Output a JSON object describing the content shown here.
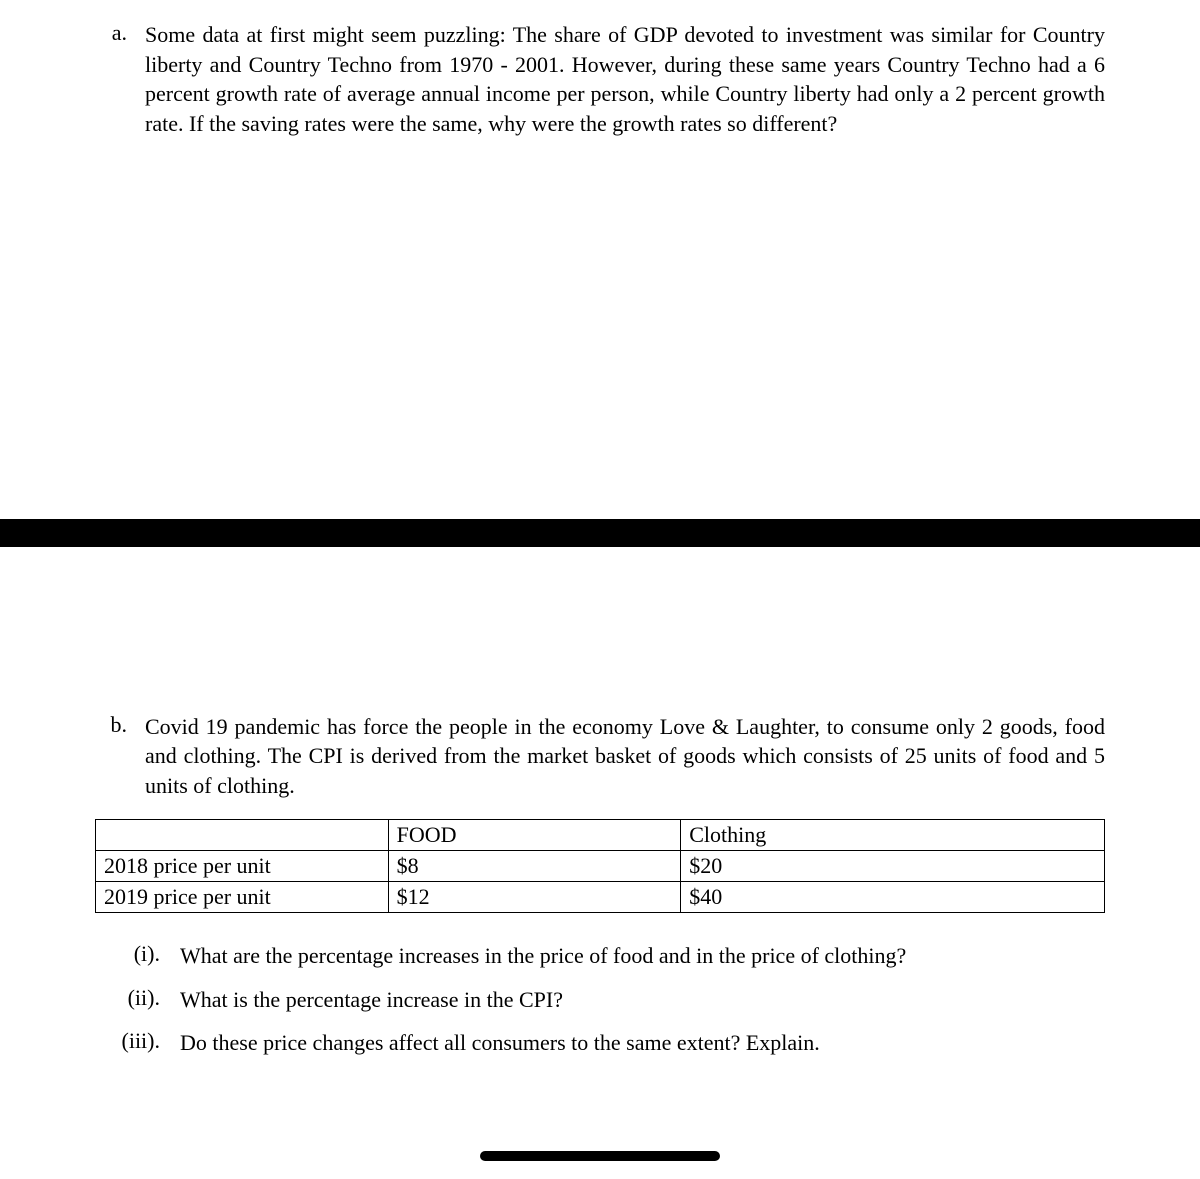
{
  "question_a": {
    "marker": "a.",
    "text": "Some data at first might seem puzzling: The share of GDP devoted to investment was similar for Country liberty and Country Techno from 1970 - 2001. However, during these same years Country Techno had a 6 percent growth rate of average annual income per person, while Country liberty had only a 2 percent growth rate. If the saving rates were the same, why were the growth rates so different?"
  },
  "question_b": {
    "marker": "b.",
    "text": "Covid 19 pandemic has force the people in the economy Love & Laughter, to consume only 2 goods, food and clothing.  The CPI is derived from the market basket of goods which consists of 25 units of food and 5 units of clothing."
  },
  "table": {
    "header": {
      "empty": "",
      "food": "FOOD",
      "clothing": "Clothing"
    },
    "rows": [
      {
        "label": "2018 price per unit",
        "food": "$8",
        "clothing": "$20"
      },
      {
        "label": "2019 price per unit",
        "food": "$12",
        "clothing": "$40"
      }
    ]
  },
  "subquestions": [
    {
      "marker": "(i).",
      "text": "What are the percentage increases in the price of food and in the price of clothing?"
    },
    {
      "marker": "(ii).",
      "text": "What is the percentage increase in the CPI?"
    },
    {
      "marker": "(iii).",
      "text": "Do these price changes affect all consumers to the same extent? Explain."
    }
  ]
}
